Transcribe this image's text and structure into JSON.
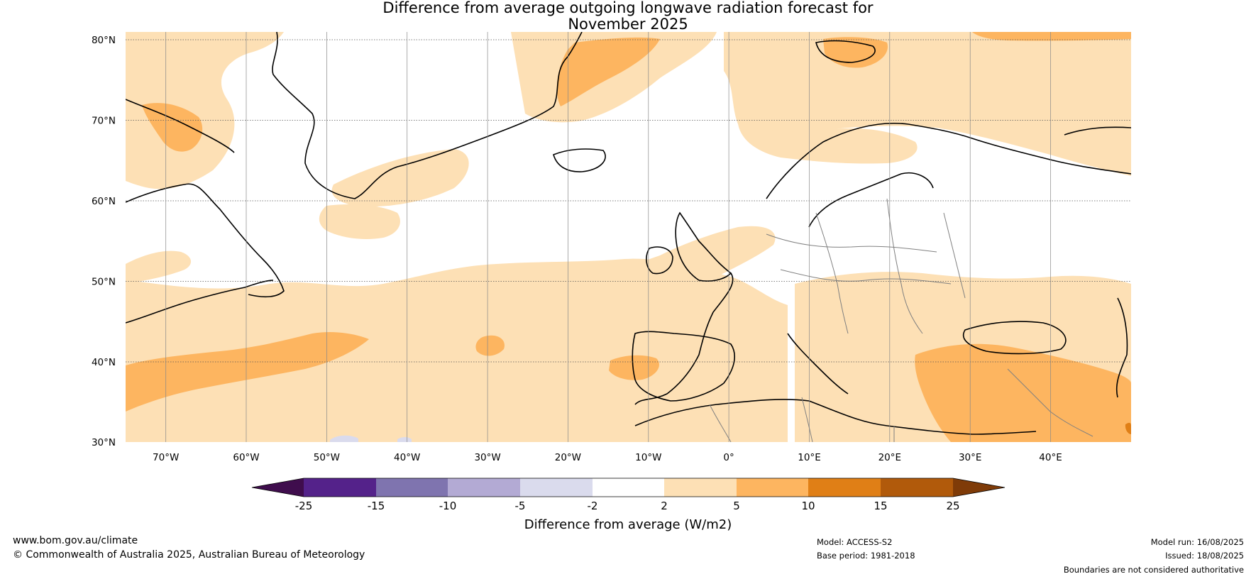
{
  "title": {
    "line1": "Difference from average outgoing longwave radiation forecast for",
    "line2": "November 2025"
  },
  "map": {
    "lat_labels": [
      "80°N",
      "70°N",
      "60°N",
      "50°N",
      "40°N",
      "30°N"
    ],
    "lon_labels": [
      "70°W",
      "60°W",
      "50°W",
      "40°W",
      "30°W",
      "20°W",
      "10°W",
      "0°",
      "10°E",
      "20°E",
      "30°E",
      "40°E"
    ],
    "lat_range": [
      30,
      81
    ],
    "lon_range": [
      -75,
      50
    ]
  },
  "colorbar": {
    "title": "Difference from average (W/m2)",
    "tick_labels": [
      "-25",
      "-15",
      "-10",
      "-5",
      "-2",
      "2",
      "5",
      "10",
      "15",
      "25"
    ],
    "colors": [
      "#3f0d4d",
      "#54228a",
      "#7f74af",
      "#b3aad4",
      "#dadbed",
      "#ffffff",
      "#fde0b5",
      "#fdb560",
      "#e07f16",
      "#b15a0b",
      "#7f3b08"
    ]
  },
  "footer": {
    "website": "www.bom.gov.au/climate",
    "copyright": "© Commonwealth of Australia 2025, Australian Bureau of Meteorology",
    "model": "Model: ACCESS-S2",
    "base_period": "Base period: 1981-2018",
    "model_run": "Model run: 16/08/2025",
    "issued": "Issued: 18/08/2025",
    "disclaimer": "Boundaries are not considered authoritative"
  }
}
